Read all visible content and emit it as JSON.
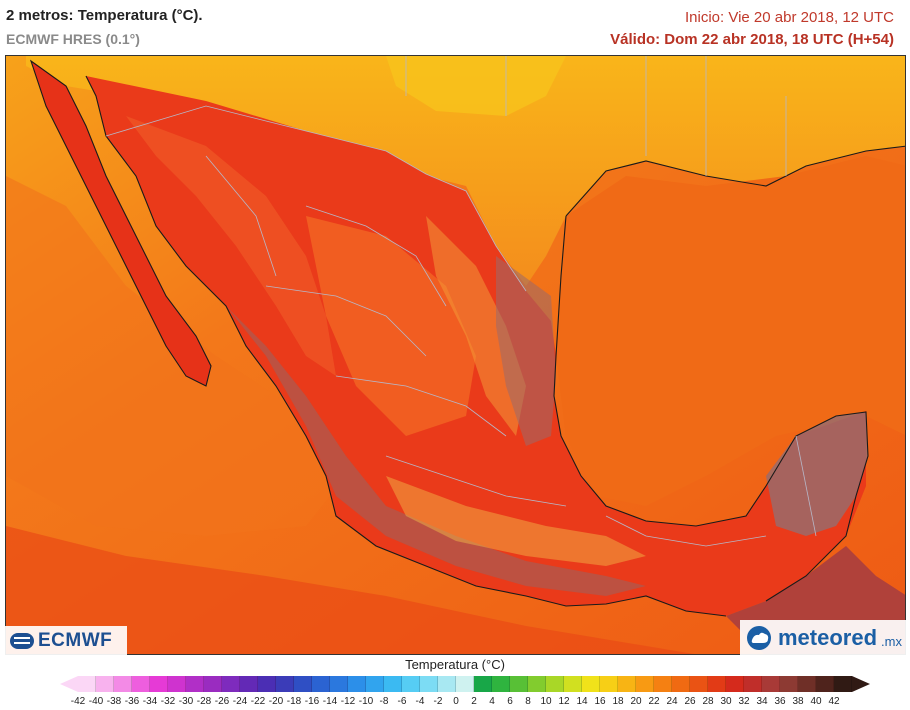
{
  "header": {
    "title": "2 metros: Temperatura (°C).",
    "subtitle": "ECMWF HRES (0.1°)",
    "init": "Inicio: Vie 20 abr 2018, 12 UTC",
    "valid": "Válido: Dom 22 abr 2018, 18 UTC (H+54)"
  },
  "logos": {
    "ecmwf": "ECMWF",
    "meteored": "meteored",
    "meteored_suffix": ".mx"
  },
  "legend": {
    "title": "Temperatura (°C)",
    "ticks": [
      "-42",
      "-40",
      "-38",
      "-36",
      "-34",
      "-32",
      "-30",
      "-28",
      "-26",
      "-24",
      "-22",
      "-20",
      "-18",
      "-16",
      "-14",
      "-12",
      "-10",
      "-8",
      "-6",
      "-4",
      "-2",
      "0",
      "2",
      "4",
      "6",
      "8",
      "10",
      "12",
      "14",
      "16",
      "18",
      "20",
      "22",
      "24",
      "26",
      "28",
      "30",
      "32",
      "34",
      "36",
      "38",
      "40",
      "42"
    ],
    "colors": [
      "#fbd7f6",
      "#f8b2ee",
      "#f38ae6",
      "#ee5ede",
      "#e63ad6",
      "#cf33cf",
      "#b12fc7",
      "#9a2cc0",
      "#7e2bbd",
      "#6329b6",
      "#4b2eb4",
      "#3b3cb8",
      "#2f4fc4",
      "#2b63d2",
      "#2b78de",
      "#2c8fe9",
      "#31a4ee",
      "#3bbaf2",
      "#56cdf4",
      "#7cdcf4",
      "#a8e8f2",
      "#cff2f0",
      "#18a748",
      "#2fb43f",
      "#58c036",
      "#82cc2e",
      "#a9d727",
      "#d1e020",
      "#f0e21a",
      "#f7cf16",
      "#f8b414",
      "#f89a13",
      "#f58012",
      "#f06a12",
      "#ea5314",
      "#e23b16",
      "#d52a1c",
      "#c02e2a",
      "#a83a37",
      "#8d3a33",
      "#6f2f27",
      "#4f231c",
      "#301a14"
    ],
    "chart_data": {
      "type": "heatmap",
      "title": "2 metros: Temperatura (°C).",
      "colorbar_min": -42,
      "colorbar_max": 42,
      "colorbar_step": 2,
      "units": "°C"
    }
  }
}
